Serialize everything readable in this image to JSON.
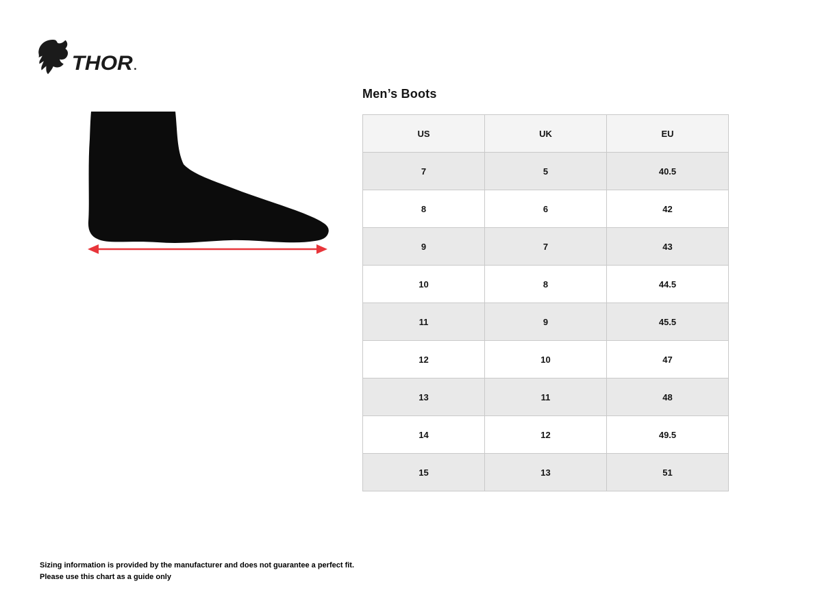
{
  "title": "Men’s Boots",
  "brand": {
    "logo_text": "THOR",
    "logo_icon": "ram-head"
  },
  "size_table": {
    "headers": [
      "US",
      "UK",
      "EU"
    ],
    "rows": [
      [
        "7",
        "5",
        "40.5"
      ],
      [
        "8",
        "6",
        "42"
      ],
      [
        "9",
        "7",
        "43"
      ],
      [
        "10",
        "8",
        "44.5"
      ],
      [
        "11",
        "9",
        "45.5"
      ],
      [
        "12",
        "10",
        "47"
      ],
      [
        "13",
        "11",
        "48"
      ],
      [
        "14",
        "12",
        "49.5"
      ],
      [
        "15",
        "13",
        "51"
      ]
    ]
  },
  "footnote": {
    "line1": "Sizing information is provided by the manufacturer and does not guarantee a perfect fit.",
    "line2": "Please use this chart as a guide only"
  },
  "colors": {
    "header_bg": "#f4f4f4",
    "row_shade_bg": "#e9e9e9",
    "row_bg": "#ffffff",
    "border": "#c9c9c9",
    "text": "#111111",
    "arrow_color": "#e8353a",
    "silhouette_color": "#0c0c0c"
  }
}
